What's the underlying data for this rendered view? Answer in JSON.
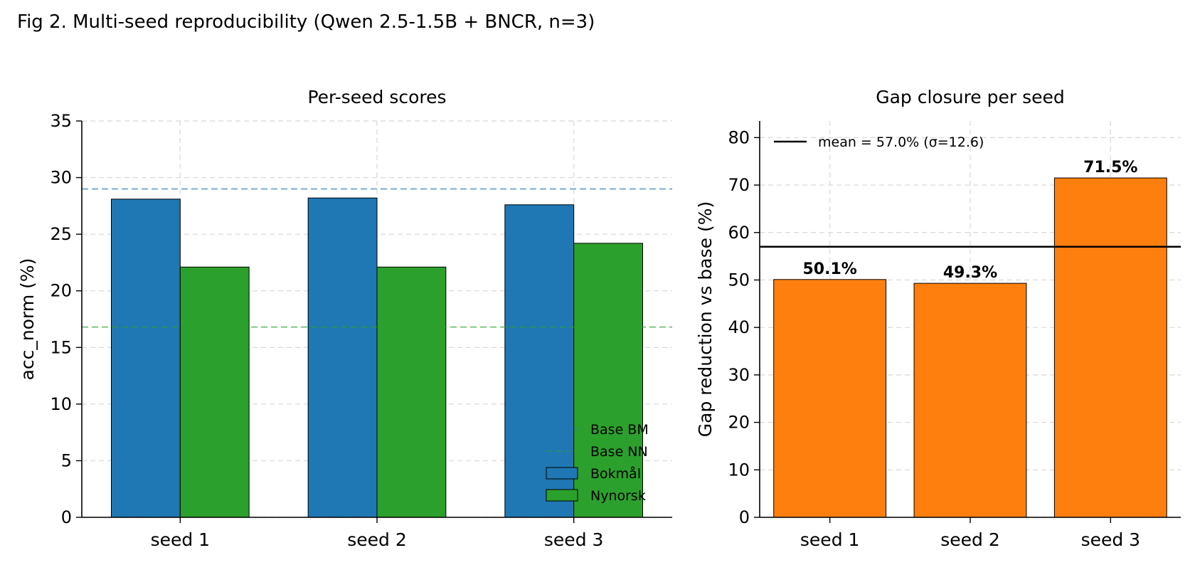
{
  "figure": {
    "title": "Fig 2. Multi-seed reproducibility (Qwen 2.5-1.5B + BNCR, n=3)"
  },
  "chart_data": [
    {
      "type": "bar",
      "title": "Per-seed scores",
      "xlabel": "",
      "ylabel": "acc_norm (%)",
      "categories": [
        "seed 1",
        "seed 2",
        "seed 3"
      ],
      "ylim": [
        0,
        35
      ],
      "yticks": [
        0,
        5,
        10,
        15,
        20,
        25,
        30,
        35
      ],
      "grid": true,
      "series": [
        {
          "name": "Bokmål",
          "color": "#1f77b4",
          "values": [
            28.1,
            28.2,
            27.6
          ]
        },
        {
          "name": "Nynorsk",
          "color": "#2ca02c",
          "values": [
            22.1,
            22.1,
            24.2
          ]
        }
      ],
      "reference_lines": [
        {
          "name": "Base BM",
          "value": 29.0,
          "color": "#1f77b4",
          "style": "dashed"
        },
        {
          "name": "Base NN",
          "value": 16.8,
          "color": "#2ca02c",
          "style": "dashed"
        }
      ],
      "legend": {
        "position": "lower right"
      }
    },
    {
      "type": "bar",
      "title": "Gap closure per seed",
      "xlabel": "",
      "ylabel": "Gap reduction vs base (%)",
      "categories": [
        "seed 1",
        "seed 2",
        "seed 3"
      ],
      "ylim": [
        0,
        83.5
      ],
      "yticks": [
        0,
        10,
        20,
        30,
        40,
        50,
        60,
        70,
        80
      ],
      "grid": true,
      "series": [
        {
          "name": "",
          "color": "#ff7f0e",
          "values": [
            50.1,
            49.3,
            71.5
          ],
          "labels": [
            "50.1%",
            "49.3%",
            "71.5%"
          ]
        }
      ],
      "reference_lines": [
        {
          "name": "mean = 57.0% (σ=12.6)",
          "value": 57.0,
          "color": "#000000",
          "style": "solid"
        }
      ],
      "legend": {
        "position": "upper left"
      }
    }
  ]
}
